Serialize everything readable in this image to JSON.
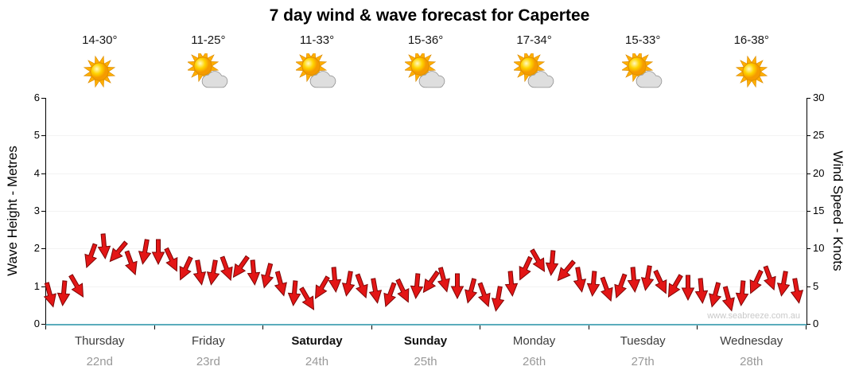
{
  "title": "7 day wind & wave forecast for Capertee",
  "watermark": "www.seabreeze.com.au",
  "left_axis": {
    "label": "Wave Height - Metres",
    "min": 0,
    "max": 6,
    "ticks": [
      0,
      1,
      2,
      3,
      4,
      5,
      6
    ]
  },
  "right_axis": {
    "label": "Wind Speed - Knots",
    "min": 0,
    "max": 30,
    "ticks": [
      0,
      5,
      10,
      15,
      20,
      25,
      30
    ]
  },
  "days": [
    {
      "name": "Thursday",
      "date": "22nd",
      "temp": "14-30°",
      "icon": "sunny",
      "weekend": false
    },
    {
      "name": "Friday",
      "date": "23rd",
      "temp": "11-25°",
      "icon": "partly-cloudy",
      "weekend": false
    },
    {
      "name": "Saturday",
      "date": "24th",
      "temp": "11-33°",
      "icon": "partly-cloudy",
      "weekend": true
    },
    {
      "name": "Sunday",
      "date": "25th",
      "temp": "15-36°",
      "icon": "partly-cloudy",
      "weekend": true
    },
    {
      "name": "Monday",
      "date": "26th",
      "temp": "17-34°",
      "icon": "partly-cloudy",
      "weekend": false
    },
    {
      "name": "Tuesday",
      "date": "27th",
      "temp": "15-33°",
      "icon": "partly-cloudy",
      "weekend": false
    },
    {
      "name": "Wednesday",
      "date": "28th",
      "temp": "16-38°",
      "icon": "sunny",
      "weekend": false
    }
  ],
  "chart_data": {
    "type": "scatter",
    "title": "7 day wind & wave forecast for Capertee",
    "x_axis": {
      "unit": "hours from start of Thursday 22nd",
      "range": [
        0,
        168
      ],
      "day_ticks": [
        "Thursday 22nd",
        "Friday 23rd",
        "Saturday 24th",
        "Sunday 25th",
        "Monday 26th",
        "Tuesday 27th",
        "Wednesday 28th"
      ]
    },
    "y_left": {
      "label": "Wave Height - Metres",
      "range": [
        0,
        6
      ]
    },
    "y_right": {
      "label": "Wind Speed - Knots",
      "range": [
        0,
        30
      ]
    },
    "legend": "none",
    "grid": "faint horizontal",
    "series": [
      {
        "name": "wind-arrows",
        "marker": "arrow",
        "color": "#e31616",
        "points_format": [
          "hour",
          "wind_speed_knots",
          "direction_deg_cw_from_east"
        ],
        "points": [
          [
            1,
            3.8,
            75
          ],
          [
            4,
            4.0,
            95
          ],
          [
            7,
            5.0,
            60
          ],
          [
            10,
            9.0,
            110
          ],
          [
            13,
            10.3,
            85
          ],
          [
            16,
            9.5,
            130
          ],
          [
            19,
            8.0,
            70
          ],
          [
            22,
            9.5,
            100
          ],
          [
            25,
            9.5,
            90
          ],
          [
            28,
            8.5,
            65
          ],
          [
            31,
            7.3,
            115
          ],
          [
            34,
            6.8,
            80
          ],
          [
            37,
            6.8,
            100
          ],
          [
            40,
            7.3,
            70
          ],
          [
            43,
            7.5,
            125
          ],
          [
            46,
            6.8,
            85
          ],
          [
            49,
            6.3,
            105
          ],
          [
            52,
            5.3,
            75
          ],
          [
            55,
            4.0,
            95
          ],
          [
            58,
            3.3,
            60
          ],
          [
            61,
            4.8,
            120
          ],
          [
            64,
            5.8,
            85
          ],
          [
            67,
            5.3,
            100
          ],
          [
            70,
            5.0,
            70
          ],
          [
            73,
            4.3,
            80
          ],
          [
            76,
            3.8,
            110
          ],
          [
            79,
            4.3,
            65
          ],
          [
            82,
            5.0,
            95
          ],
          [
            85,
            5.5,
            125
          ],
          [
            88,
            5.8,
            75
          ],
          [
            91,
            5.0,
            90
          ],
          [
            94,
            4.3,
            105
          ],
          [
            97,
            3.8,
            70
          ],
          [
            100,
            3.3,
            100
          ],
          [
            103,
            5.3,
            85
          ],
          [
            106,
            7.3,
            115
          ],
          [
            109,
            8.3,
            60
          ],
          [
            112,
            8.0,
            95
          ],
          [
            115,
            7.0,
            130
          ],
          [
            118,
            5.8,
            80
          ],
          [
            121,
            5.3,
            95
          ],
          [
            124,
            4.5,
            70
          ],
          [
            127,
            5.0,
            110
          ],
          [
            130,
            5.8,
            85
          ],
          [
            133,
            6.0,
            100
          ],
          [
            136,
            5.5,
            65
          ],
          [
            139,
            5.0,
            120
          ],
          [
            142,
            4.8,
            90
          ],
          [
            145,
            4.3,
            85
          ],
          [
            148,
            3.8,
            105
          ],
          [
            151,
            3.3,
            75
          ],
          [
            154,
            4.0,
            95
          ],
          [
            157,
            5.5,
            115
          ],
          [
            160,
            6.0,
            70
          ],
          [
            163,
            5.3,
            100
          ],
          [
            166,
            4.3,
            80
          ]
        ]
      }
    ]
  }
}
